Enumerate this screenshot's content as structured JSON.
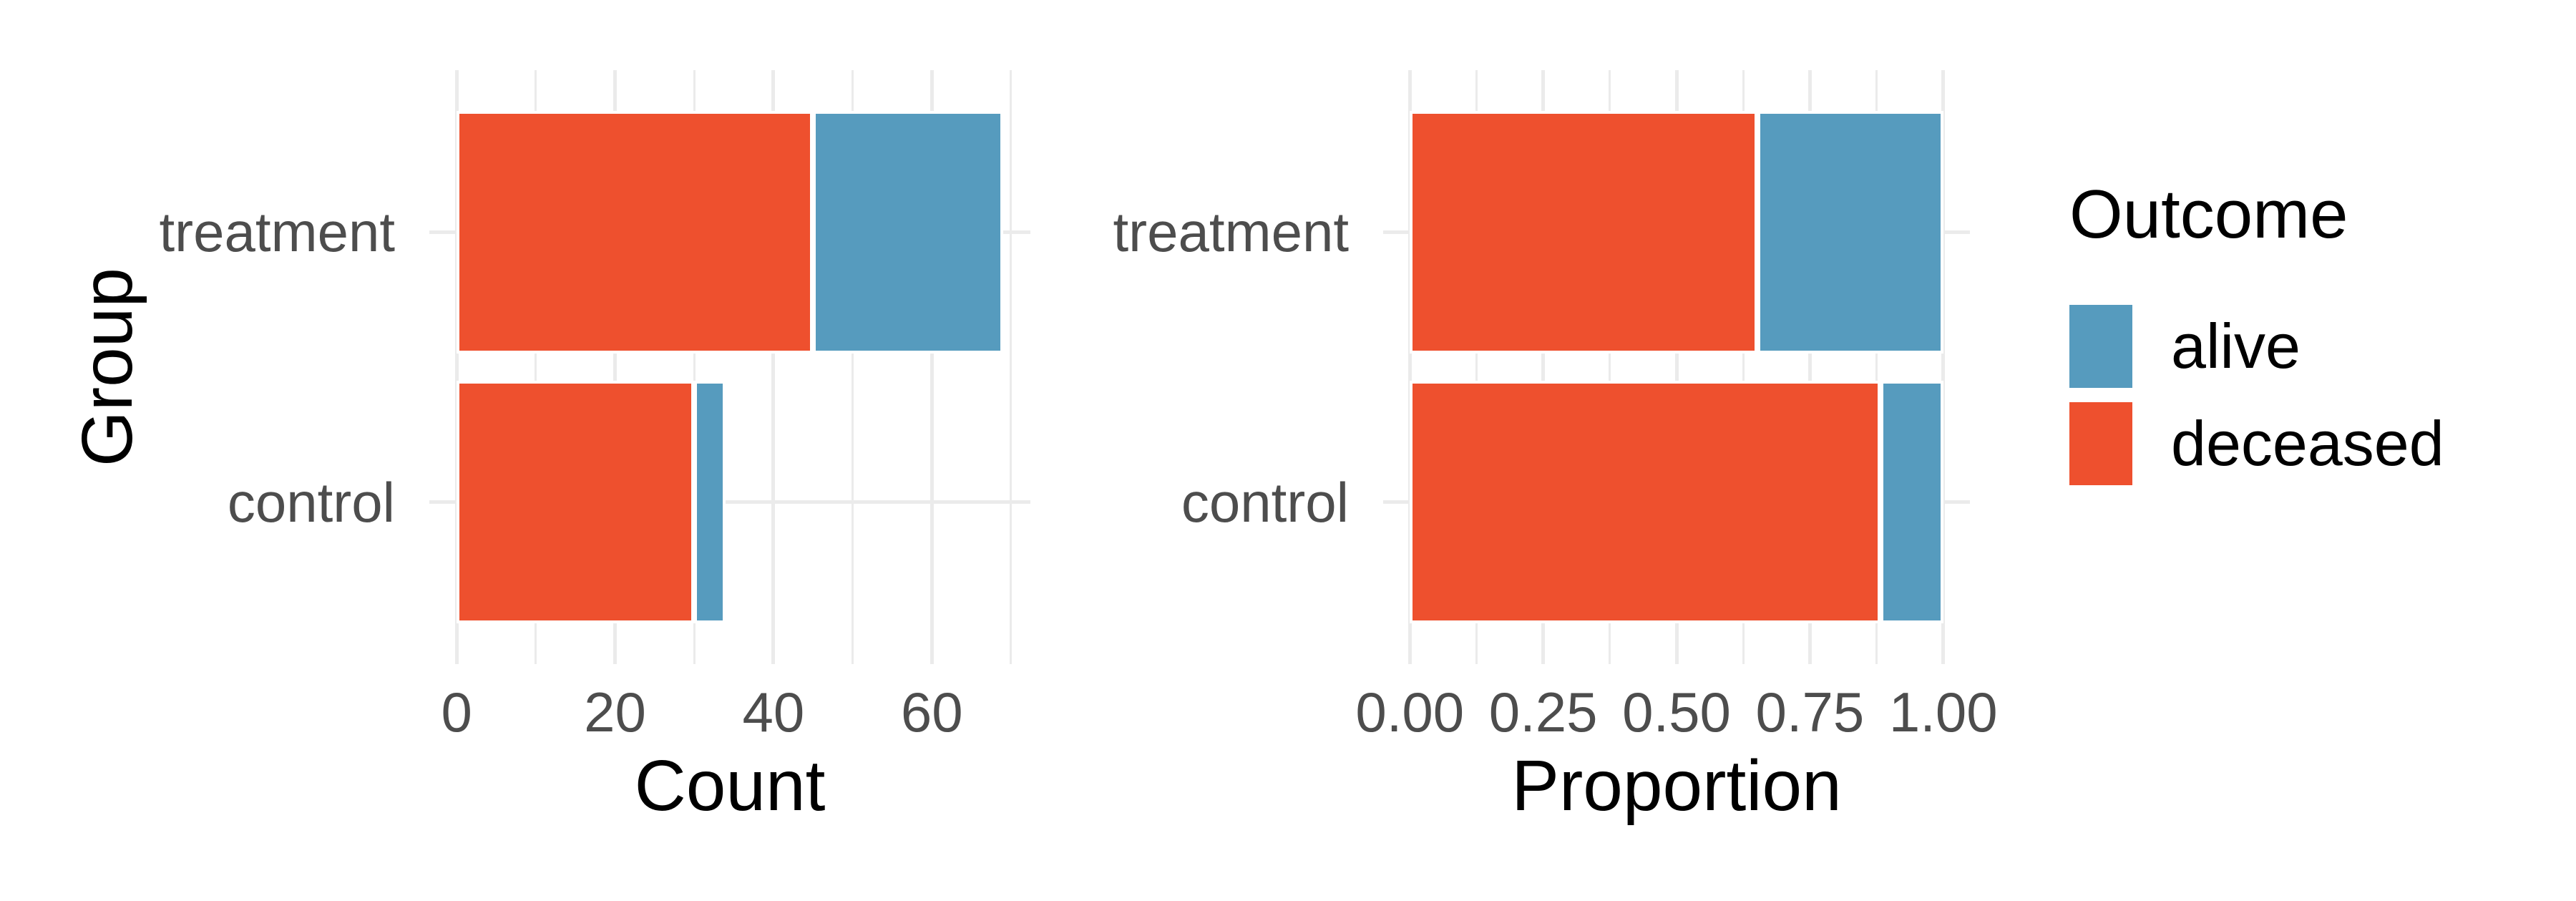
{
  "style": {
    "background": "#FFFFFF",
    "gridline_color": "#EBEBEB",
    "tick_text_color": "#4D4D4D",
    "title_text_color": "#000000",
    "bar_border_color": "#FFFFFF"
  },
  "chart_data": [
    {
      "type": "bar",
      "orientation": "horizontal",
      "stacked": true,
      "title": "",
      "xlabel": "Count",
      "ylabel": "Group",
      "categories": [
        "treatment",
        "control"
      ],
      "series": [
        {
          "name": "deceased",
          "color": "#EE502E",
          "values": [
            45,
            30
          ]
        },
        {
          "name": "alive",
          "color": "#569BBE",
          "values": [
            24,
            4
          ]
        }
      ],
      "totals": [
        69,
        34
      ],
      "xlim": [
        0,
        69
      ],
      "x_major_ticks": [
        0,
        20,
        40,
        60
      ],
      "x_tick_labels": [
        "0",
        "20",
        "40",
        "60"
      ],
      "x_minor_ticks": [
        10,
        30,
        50,
        70
      ],
      "grid": true,
      "legend_position": "none"
    },
    {
      "type": "bar",
      "orientation": "horizontal",
      "stacked": true,
      "title": "",
      "xlabel": "Proportion",
      "ylabel": "",
      "categories": [
        "treatment",
        "control"
      ],
      "series": [
        {
          "name": "deceased",
          "color": "#EE502E",
          "values": [
            0.652,
            0.882
          ]
        },
        {
          "name": "alive",
          "color": "#569BBE",
          "values": [
            0.348,
            0.118
          ]
        }
      ],
      "xlim": [
        0,
        1
      ],
      "x_major_ticks": [
        0,
        0.25,
        0.5,
        0.75,
        1
      ],
      "x_tick_labels": [
        "0.00",
        "0.25",
        "0.50",
        "0.75",
        "1.00"
      ],
      "x_minor_ticks": [
        0.125,
        0.375,
        0.625,
        0.875
      ],
      "grid": true,
      "legend_position": "right"
    }
  ],
  "legend": {
    "title": "Outcome",
    "items": [
      {
        "label": "alive",
        "color": "#569BBE"
      },
      {
        "label": "deceased",
        "color": "#EE502E"
      }
    ]
  }
}
